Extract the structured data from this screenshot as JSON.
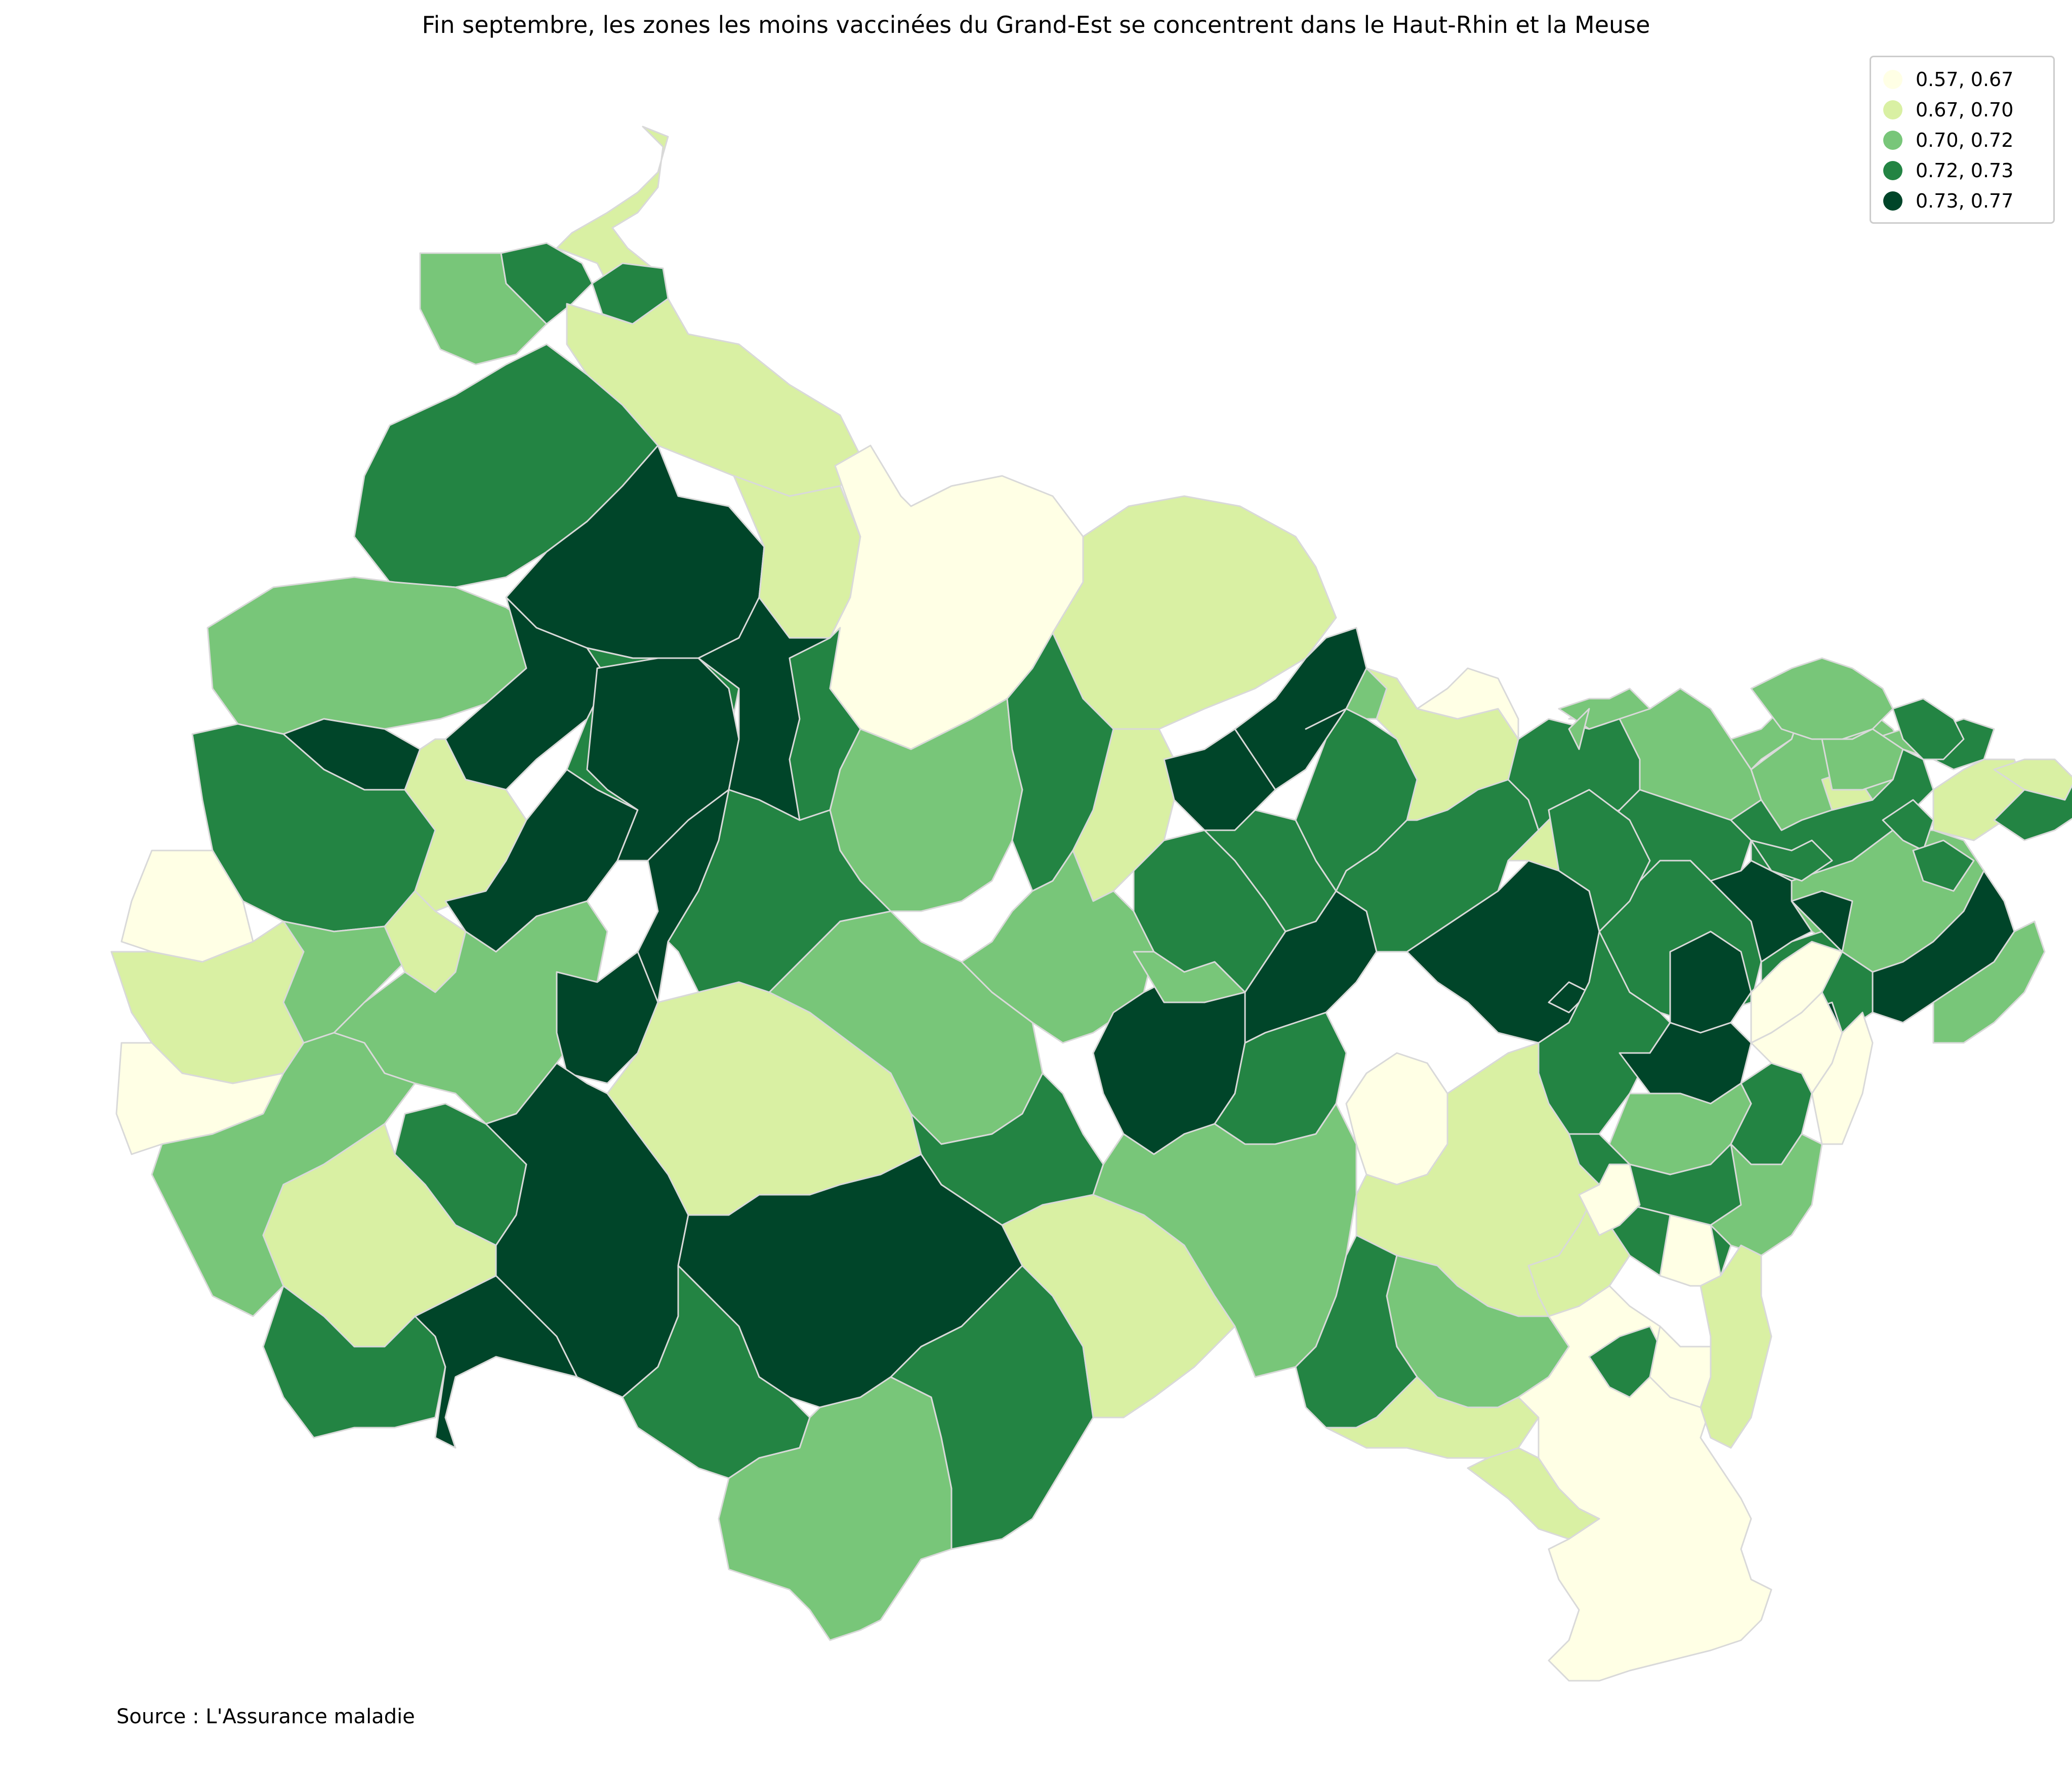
{
  "title": "Fin septembre, les zones les moins vaccinées du Grand-Est se concentrent dans le Haut-Rhin et la Meuse",
  "source": "Source : L'Assurance maladie",
  "legend": {
    "entries": [
      {
        "label": "0.57, 0.67",
        "color": "#ffffe5"
      },
      {
        "label": "0.67, 0.70",
        "color": "#d9f0a3"
      },
      {
        "label": "0.70, 0.72",
        "color": "#78c679"
      },
      {
        "label": "0.72, 0.73",
        "color": "#238443"
      },
      {
        "label": "0.73, 0.77",
        "color": "#004529"
      }
    ]
  },
  "map": {
    "region": "Grand-Est",
    "color_scale": "YlGn",
    "classes": 5
  }
}
